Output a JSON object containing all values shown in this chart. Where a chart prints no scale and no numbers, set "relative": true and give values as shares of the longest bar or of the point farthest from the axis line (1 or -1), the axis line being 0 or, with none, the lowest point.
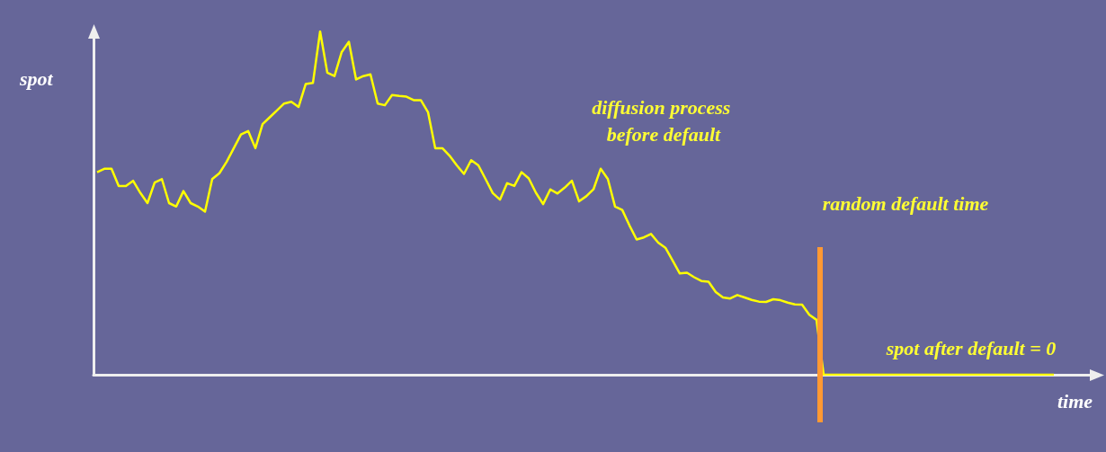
{
  "chart_data": {
    "type": "line",
    "relative": true,
    "xlabel": "time",
    "ylabel": "spot",
    "marker": "none",
    "line_style": "solid",
    "categories": [
      null,
      null,
      null,
      null,
      null,
      null,
      null,
      null,
      null,
      null,
      null,
      null,
      null,
      null,
      null,
      null,
      null,
      null,
      null,
      null,
      null,
      null,
      null,
      null,
      null,
      null,
      null,
      null,
      null,
      null,
      null,
      null,
      null,
      null,
      null,
      null,
      null,
      null,
      null,
      null,
      null,
      null,
      null,
      null,
      null,
      null,
      null,
      null,
      null,
      null,
      null,
      null,
      null,
      null,
      null,
      null,
      null,
      null,
      null,
      null,
      null,
      null,
      null,
      null,
      null,
      null,
      null,
      null,
      null,
      null,
      null,
      null,
      null,
      null,
      null,
      null,
      null,
      null,
      null,
      null,
      null,
      null,
      null,
      null,
      null,
      null,
      null,
      null,
      null,
      null,
      null,
      null,
      null,
      null,
      null,
      null,
      null,
      null,
      null,
      null,
      null,
      null,
      null,
      null,
      null,
      null,
      null,
      null,
      null,
      null,
      null,
      null,
      null,
      null,
      null,
      null,
      null,
      null,
      null,
      null,
      null,
      null,
      null,
      null,
      null,
      null,
      null,
      null,
      null,
      null,
      null,
      null,
      null,
      null
    ],
    "series": [
      {
        "color": "#ffff00",
        "values": [
          0.59,
          0.6,
          0.6,
          0.55,
          0.55,
          0.565,
          0.53,
          0.5,
          0.56,
          0.57,
          0.5,
          0.49,
          0.535,
          0.5,
          0.49,
          0.475,
          0.57,
          0.587,
          0.62,
          0.66,
          0.7,
          0.71,
          0.66,
          0.73,
          0.75,
          0.77,
          0.79,
          0.795,
          0.78,
          0.847,
          0.85,
          1.0,
          0.88,
          0.87,
          0.94,
          0.97,
          0.86,
          0.87,
          0.875,
          0.79,
          0.785,
          0.815,
          0.812,
          0.81,
          0.8,
          0.8,
          0.765,
          0.66,
          0.66,
          0.638,
          0.61,
          0.585,
          0.625,
          0.61,
          0.57,
          0.529,
          0.51,
          0.558,
          0.55,
          0.59,
          0.572,
          0.53,
          0.497,
          0.54,
          0.528,
          0.545,
          0.565,
          0.505,
          0.52,
          0.54,
          0.6,
          0.57,
          0.49,
          0.48,
          0.435,
          0.394,
          0.4,
          0.41,
          0.385,
          0.37,
          0.333,
          0.295,
          0.297,
          0.284,
          0.273,
          0.271,
          0.241,
          0.225,
          0.222,
          0.232,
          0.225,
          0.218,
          0.213,
          0.212,
          0.22,
          0.217,
          0.21,
          0.205,
          0.204,
          0.175,
          0.16,
          0,
          0,
          0,
          0,
          0,
          0,
          0,
          0,
          0,
          0,
          0,
          0,
          0,
          0,
          0,
          0,
          0,
          0,
          0,
          0,
          0,
          0,
          0,
          0,
          0,
          0,
          0,
          0,
          0,
          0,
          0,
          0,
          0
        ]
      }
    ],
    "annotations": [
      "diffusion process before default",
      "random default time",
      "spot after default = 0"
    ]
  }
}
